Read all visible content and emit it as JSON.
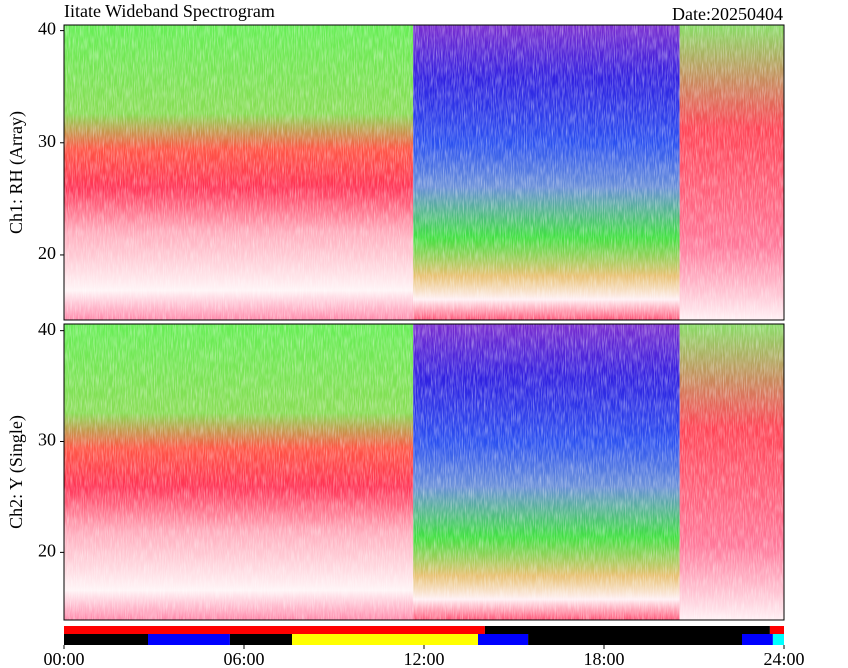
{
  "chart_data": [
    {
      "type": "heatmap",
      "title": "Iitate Wideband Spectrogram",
      "ylabel": "Ch1: RH (Array)",
      "ylim": [
        14.2,
        40.5
      ],
      "yticks": [
        20,
        30,
        40
      ]
    },
    {
      "type": "heatmap",
      "subtitle": "Date:20250404",
      "ylabel": "Ch2: Y (Single)",
      "ylim": [
        13.9,
        40.6
      ],
      "yticks": [
        20,
        30,
        40
      ]
    },
    {
      "type": "timeline",
      "xlim": [
        0,
        24
      ],
      "xticks": [
        {
          "value": 0,
          "label": "00:00"
        },
        {
          "value": 6,
          "label": "06:00"
        },
        {
          "value": 12,
          "label": "12:00"
        },
        {
          "value": 18,
          "label": "18:00"
        },
        {
          "value": 24,
          "label": "24:00"
        }
      ],
      "rows": [
        [
          {
            "start": 0,
            "end": 14.03,
            "color": "#ff0000"
          },
          {
            "start": 14.03,
            "end": 23.53,
            "color": "#000000"
          },
          {
            "start": 23.53,
            "end": 24,
            "color": "#ff0000"
          }
        ],
        [
          {
            "start": 0,
            "end": 2.8,
            "color": "#000000"
          },
          {
            "start": 2.8,
            "end": 5.53,
            "color": "#0000ff"
          },
          {
            "start": 5.53,
            "end": 7.6,
            "color": "#000000"
          },
          {
            "start": 7.6,
            "end": 13.8,
            "color": "#ffff00"
          },
          {
            "start": 13.8,
            "end": 15.47,
            "color": "#0000ff"
          },
          {
            "start": 15.47,
            "end": 22.6,
            "color": "#000000"
          },
          {
            "start": 22.6,
            "end": 23.63,
            "color": "#0000ff"
          },
          {
            "start": 23.63,
            "end": 24,
            "color": "#00ffff"
          }
        ]
      ]
    }
  ]
}
